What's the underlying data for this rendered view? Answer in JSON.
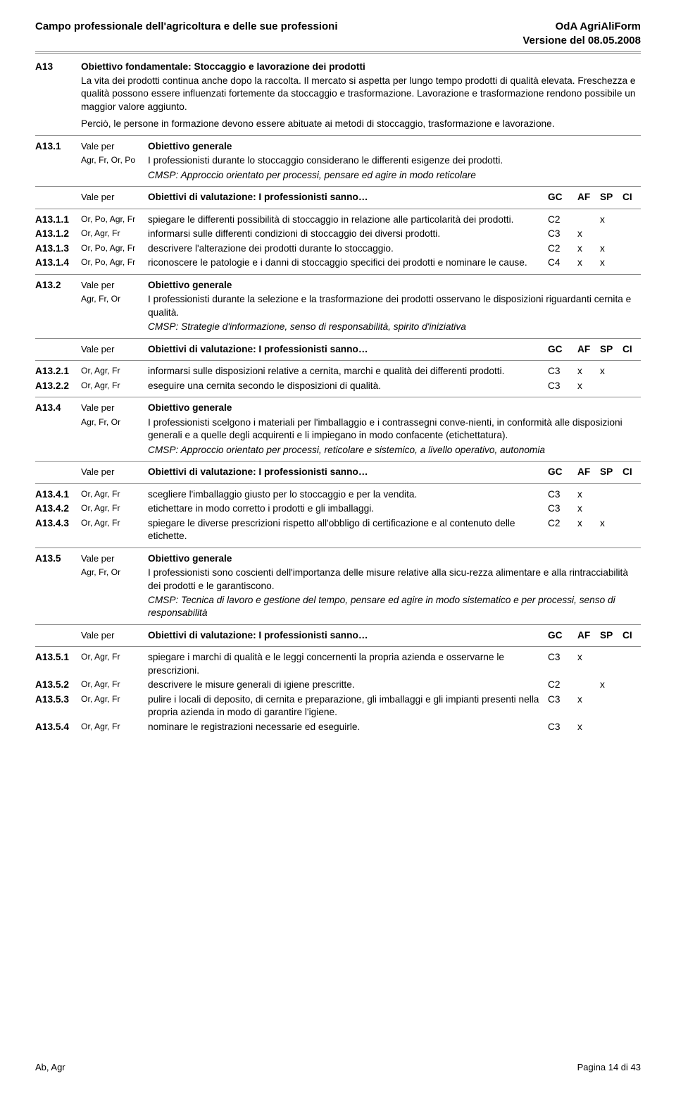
{
  "header": {
    "left": "Campo professionale dell'agricoltura e delle sue professioni",
    "right_line1": "OdA AgriAliForm",
    "right_line2": "Versione del 08.05.2008"
  },
  "intro": {
    "code": "A13",
    "title": "Obiettivo fondamentale: Stoccaggio e lavorazione dei prodotti",
    "para1": "La vita dei prodotti continua anche dopo la raccolta. Il mercato si aspetta per lungo tempo prodotti di qualità elevata. Freschezza e qualità possono essere influenzati fortemente da stoccaggio e trasformazione. Lavorazione e trasformazione rendono possibile un maggior valore aggiunto.",
    "para2": "Perciò, le persone in formazione devono essere abituate ai metodi di stoccaggio, trasformazione e lavorazione."
  },
  "labels": {
    "vale_per": "Vale per",
    "obiettivo_generale": "Obiettivo generale",
    "obiettivi_val": "Obiettivi di  valutazione: I professionisti sanno…",
    "gc": "GC",
    "af": "AF",
    "sp": "SP",
    "ci": "CI"
  },
  "a13_1": {
    "code": "A13.1",
    "agr": "Agr, Fr, Or, Po",
    "gen": "I professionisti durante lo stoccaggio considerano le differenti esigenze dei prodotti.",
    "cmsp": "CMSP: Approccio orientato per processi, pensare ed agire in modo reticolare",
    "rows": [
      {
        "code": "A13.1.1",
        "who": "Or, Po, Agr, Fr",
        "txt": "spiegare le differenti possibilità di stoccaggio in relazione alle particolarità dei prodotti.",
        "gc": "C2",
        "af": "",
        "sp": "x",
        "ci": ""
      },
      {
        "code": "A13.1.2",
        "who": "Or, Agr, Fr",
        "txt": "informarsi sulle differenti condizioni di stoccaggio dei diversi prodotti.",
        "gc": "C3",
        "af": "x",
        "sp": "",
        "ci": ""
      },
      {
        "code": "A13.1.3",
        "who": "Or, Po, Agr, Fr",
        "txt": "descrivere l'alterazione dei prodotti durante lo stoccaggio.",
        "gc": "C2",
        "af": "x",
        "sp": "x",
        "ci": ""
      },
      {
        "code": "A13.1.4",
        "who": "Or, Po, Agr, Fr",
        "txt": "riconoscere le patologie e i danni di stoccaggio specifici dei prodotti e nominare le cause.",
        "gc": "C4",
        "af": "x",
        "sp": "x",
        "ci": ""
      }
    ]
  },
  "a13_2": {
    "code": "A13.2",
    "agr": "Agr, Fr, Or",
    "gen": "I professionisti durante la selezione e la trasformazione dei prodotti osservano le disposizioni riguardanti cernita e qualità.",
    "cmsp": "CMSP: Strategie d'informazione, senso di responsabilità, spirito d'iniziativa",
    "rows": [
      {
        "code": "A13.2.1",
        "who": "Or, Agr, Fr",
        "txt": "informarsi sulle disposizioni relative a cernita, marchi e qualità dei differenti prodotti.",
        "gc": "C3",
        "af": "x",
        "sp": "x",
        "ci": ""
      },
      {
        "code": "A13.2.2",
        "who": "Or, Agr, Fr",
        "txt": "eseguire una cernita secondo le disposizioni di qualità.",
        "gc": "C3",
        "af": "x",
        "sp": "",
        "ci": ""
      }
    ]
  },
  "a13_4": {
    "code": "A13.4",
    "agr": "Agr, Fr, Or",
    "gen": "I professionisti scelgono i materiali per l'imballaggio e i contrassegni conve-nienti, in conformità alle disposizioni generali e a quelle degli acquirenti e li impiegano in modo confacente (etichettatura).",
    "cmsp": "CMSP: Approccio orientato per processi, reticolare e sistemico, a livello operativo, autonomia",
    "rows": [
      {
        "code": "A13.4.1",
        "who": "Or, Agr, Fr",
        "txt": "scegliere l'imballaggio giusto per lo stoccaggio e per la vendita.",
        "gc": "C3",
        "af": "x",
        "sp": "",
        "ci": ""
      },
      {
        "code": "A13.4.2",
        "who": "Or, Agr, Fr",
        "txt": "etichettare in modo corretto i prodotti e gli imballaggi.",
        "gc": "C3",
        "af": "x",
        "sp": "",
        "ci": ""
      },
      {
        "code": "A13.4.3",
        "who": "Or, Agr, Fr",
        "txt": "spiegare le diverse prescrizioni rispetto all'obbligo di certificazione e al contenuto delle etichette.",
        "gc": "C2",
        "af": "x",
        "sp": "x",
        "ci": ""
      }
    ]
  },
  "a13_5": {
    "code": "A13.5",
    "agr": "Agr, Fr, Or",
    "gen": "I professionisti sono coscienti dell'importanza delle misure relative alla sicu-rezza alimentare e alla rintracciabilità dei prodotti e le garantiscono.",
    "cmsp": "CMSP: Tecnica di lavoro e gestione del tempo, pensare ed agire in modo sistematico e per processi, senso di responsabilità",
    "rows": [
      {
        "code": "A13.5.1",
        "who": "Or, Agr, Fr",
        "txt": "spiegare i marchi di qualità e le leggi concernenti la propria azienda e osservarne le prescrizioni.",
        "gc": "C3",
        "af": "x",
        "sp": "",
        "ci": ""
      },
      {
        "code": "A13.5.2",
        "who": "Or, Agr, Fr",
        "txt": "descrivere le misure generali di igiene prescritte.",
        "gc": "C2",
        "af": "",
        "sp": "x",
        "ci": ""
      },
      {
        "code": "A13.5.3",
        "who": "Or, Agr, Fr",
        "txt": "pulire i locali di deposito, di cernita e  preparazione, gli imballaggi e gli impianti presenti nella propria azienda in modo di garantire l'igiene.",
        "gc": "C3",
        "af": "x",
        "sp": "",
        "ci": ""
      },
      {
        "code": "A13.5.4",
        "who": "Or, Agr, Fr",
        "txt": "nominare le registrazioni necessarie ed eseguirle.",
        "gc": "C3",
        "af": "x",
        "sp": "",
        "ci": ""
      }
    ]
  },
  "footer": {
    "left": "Ab, Agr",
    "right": "Pagina 14 di 43"
  }
}
